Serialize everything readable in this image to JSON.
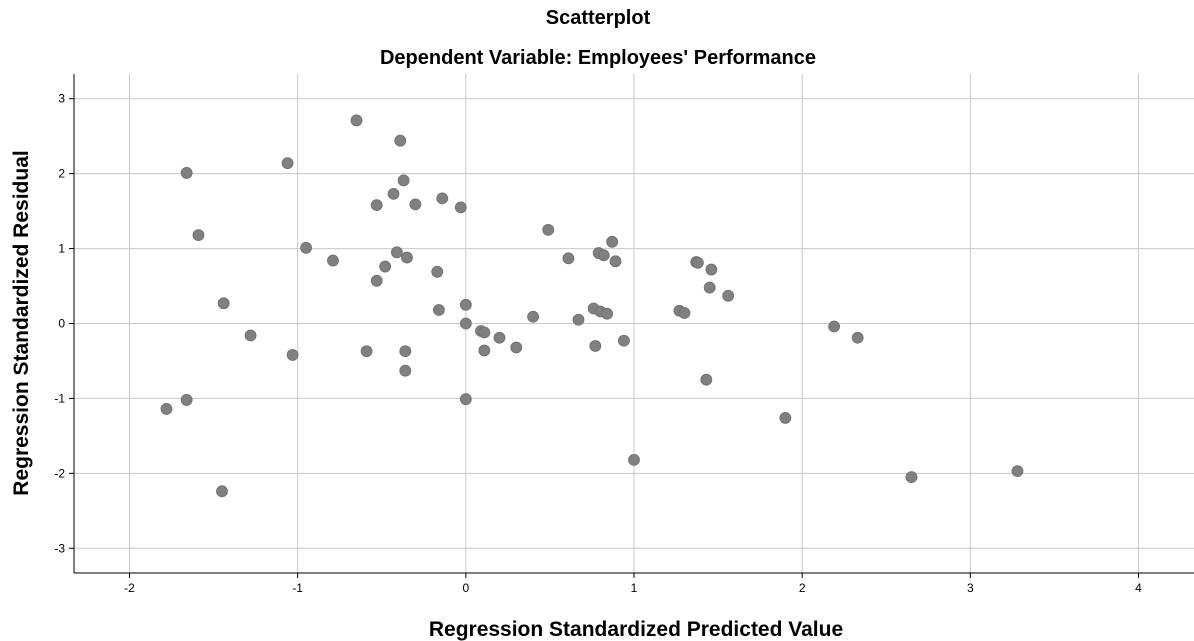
{
  "chart_data": {
    "type": "scatter",
    "title": "Scatterplot",
    "subtitle": "Dependent Variable: Employees' Performance",
    "xlabel": "Regression Standardized Predicted Value",
    "ylabel": "Regression Standardized Residual",
    "xlim": [
      -2.33,
      4.33
    ],
    "ylim": [
      -3.33,
      3.33
    ],
    "x_ticks": [
      -2,
      -1,
      0,
      1,
      2,
      3,
      4
    ],
    "y_ticks": [
      -3,
      -2,
      -1,
      0,
      1,
      2,
      3
    ],
    "grid": true,
    "point_color": "#808080",
    "grid_color": "#c8c8c8",
    "points": [
      {
        "x": -1.78,
        "y": -1.14
      },
      {
        "x": -1.66,
        "y": 2.01
      },
      {
        "x": -1.66,
        "y": -1.02
      },
      {
        "x": -1.59,
        "y": 1.18
      },
      {
        "x": -1.44,
        "y": 0.27
      },
      {
        "x": -1.45,
        "y": -2.24
      },
      {
        "x": -1.28,
        "y": -0.16
      },
      {
        "x": -1.06,
        "y": 2.14
      },
      {
        "x": -1.03,
        "y": -0.42
      },
      {
        "x": -0.95,
        "y": 1.01
      },
      {
        "x": -0.79,
        "y": 0.84
      },
      {
        "x": -0.65,
        "y": 2.71
      },
      {
        "x": -0.59,
        "y": -0.37
      },
      {
        "x": -0.53,
        "y": 1.58
      },
      {
        "x": -0.53,
        "y": 0.57
      },
      {
        "x": -0.48,
        "y": 0.76
      },
      {
        "x": -0.43,
        "y": 1.73
      },
      {
        "x": -0.41,
        "y": 0.95
      },
      {
        "x": -0.39,
        "y": 2.44
      },
      {
        "x": -0.37,
        "y": 1.91
      },
      {
        "x": -0.35,
        "y": 0.88
      },
      {
        "x": -0.36,
        "y": -0.37
      },
      {
        "x": -0.36,
        "y": -0.63
      },
      {
        "x": -0.3,
        "y": 1.59
      },
      {
        "x": -0.17,
        "y": 0.69
      },
      {
        "x": -0.16,
        "y": 0.18
      },
      {
        "x": -0.14,
        "y": 1.67
      },
      {
        "x": -0.03,
        "y": 1.55
      },
      {
        "x": 0.0,
        "y": 0.25
      },
      {
        "x": 0.0,
        "y": 0.0
      },
      {
        "x": 0.0,
        "y": -1.01
      },
      {
        "x": 0.09,
        "y": -0.1
      },
      {
        "x": 0.11,
        "y": -0.12
      },
      {
        "x": 0.11,
        "y": -0.36
      },
      {
        "x": 0.2,
        "y": -0.19
      },
      {
        "x": 0.3,
        "y": -0.32
      },
      {
        "x": 0.4,
        "y": 0.09
      },
      {
        "x": 0.49,
        "y": 1.25
      },
      {
        "x": 0.61,
        "y": 0.87
      },
      {
        "x": 0.67,
        "y": 0.05
      },
      {
        "x": 0.76,
        "y": 0.2
      },
      {
        "x": 0.77,
        "y": -0.3
      },
      {
        "x": 0.79,
        "y": 0.94
      },
      {
        "x": 0.8,
        "y": 0.16
      },
      {
        "x": 0.82,
        "y": 0.91
      },
      {
        "x": 0.84,
        "y": 0.13
      },
      {
        "x": 0.87,
        "y": 1.09
      },
      {
        "x": 0.89,
        "y": 0.83
      },
      {
        "x": 0.94,
        "y": -0.23
      },
      {
        "x": 1.0,
        "y": -1.82
      },
      {
        "x": 1.27,
        "y": 0.17
      },
      {
        "x": 1.3,
        "y": 0.14
      },
      {
        "x": 1.37,
        "y": 0.82
      },
      {
        "x": 1.38,
        "y": 0.81
      },
      {
        "x": 1.43,
        "y": -0.75
      },
      {
        "x": 1.45,
        "y": 0.48
      },
      {
        "x": 1.46,
        "y": 0.72
      },
      {
        "x": 1.56,
        "y": 0.37
      },
      {
        "x": 1.9,
        "y": -1.26
      },
      {
        "x": 2.19,
        "y": -0.04
      },
      {
        "x": 2.33,
        "y": -0.19
      },
      {
        "x": 2.65,
        "y": -2.05
      },
      {
        "x": 3.28,
        "y": -1.97
      }
    ]
  }
}
